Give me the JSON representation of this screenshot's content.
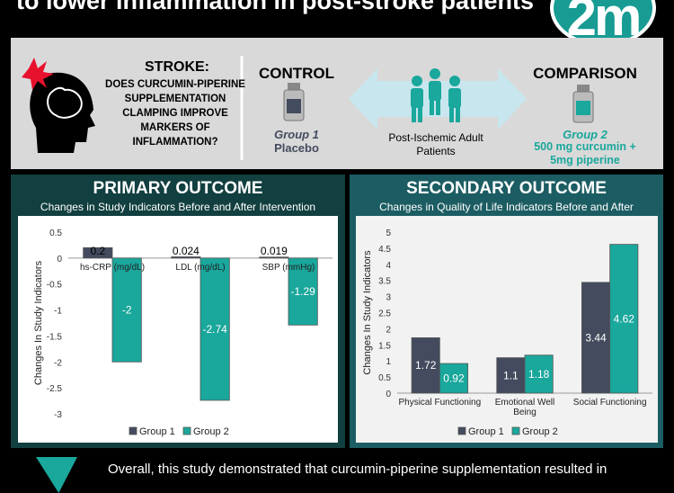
{
  "header": {
    "title": "to lower inflammation in post-stroke patients",
    "logo_text": "2m"
  },
  "question": {
    "title": "STROKE:",
    "body_lines": [
      "DOES CURCUMIN-PIPERINE",
      "SUPPLEMENTATION",
      "CLAMPING IMPROVE",
      "MARKERS OF",
      "INFLAMMATION?"
    ]
  },
  "control": {
    "heading": "CONTROL",
    "group": "Group 1",
    "treatment": "Placebo"
  },
  "population": {
    "line1": "Post-Ischemic Adult",
    "line2": "Patients"
  },
  "comparison": {
    "heading": "COMPARISON",
    "group": "Group 2",
    "treatment_line1": "500 mg curcumin +",
    "treatment_line2": "5mg piperine"
  },
  "colors": {
    "group1": "#444b5e",
    "group2": "#1aa79c",
    "dark_panel": "#123f3f",
    "teal_panel": "#1c5d63"
  },
  "primary": {
    "title": "PRIMARY OUTCOME",
    "subtitle": "Changes in Study Indicators Before and After Intervention"
  },
  "secondary": {
    "title": "SECONDARY OUTCOME",
    "subtitle": "Changes in Quality of Life Indicators Before and After"
  },
  "footer": {
    "text": "Overall, this study demonstrated that curcumin-piperine supplementation resulted in"
  },
  "chart_data": [
    {
      "type": "bar",
      "categories": [
        "hs-CRP (mg/dL)",
        "LDL (mg/dL)",
        "SBP (mmHg)"
      ],
      "series": [
        {
          "name": "Group 1",
          "values": [
            0.2,
            0.024,
            0.019
          ],
          "labels": [
            "0.2",
            "0.024",
            "0.019"
          ]
        },
        {
          "name": "Group 2",
          "values": [
            -2,
            -2.74,
            -1.29
          ],
          "labels": [
            "-2",
            "-2.74",
            "-1.29"
          ]
        }
      ],
      "ylabel": "Changes In Study Indicators",
      "ylim": [
        -3,
        0.5
      ],
      "yticks": [
        "0.5",
        "0",
        "-0.5",
        "-1",
        "-1.5",
        "-2",
        "-2.5",
        "-3"
      ],
      "legend_position": "bottom"
    },
    {
      "type": "bar",
      "categories": [
        "Physical Functioning",
        "Emotional Well Being",
        "Social Functioning"
      ],
      "series": [
        {
          "name": "Group 1",
          "values": [
            1.72,
            1.1,
            3.44
          ],
          "labels": [
            "1.72",
            "1.1",
            "3.44"
          ]
        },
        {
          "name": "Group 2",
          "values": [
            0.92,
            1.18,
            4.62
          ],
          "labels": [
            "0.92",
            "1.18",
            "4.62"
          ]
        }
      ],
      "ylabel": "Changes In Study Indicators",
      "ylim": [
        0,
        5
      ],
      "yticks": [
        "5",
        "4.5",
        "4",
        "3.5",
        "3",
        "2.5",
        "2",
        "1.5",
        "1",
        "0.5",
        "0"
      ],
      "legend_position": "bottom"
    }
  ]
}
